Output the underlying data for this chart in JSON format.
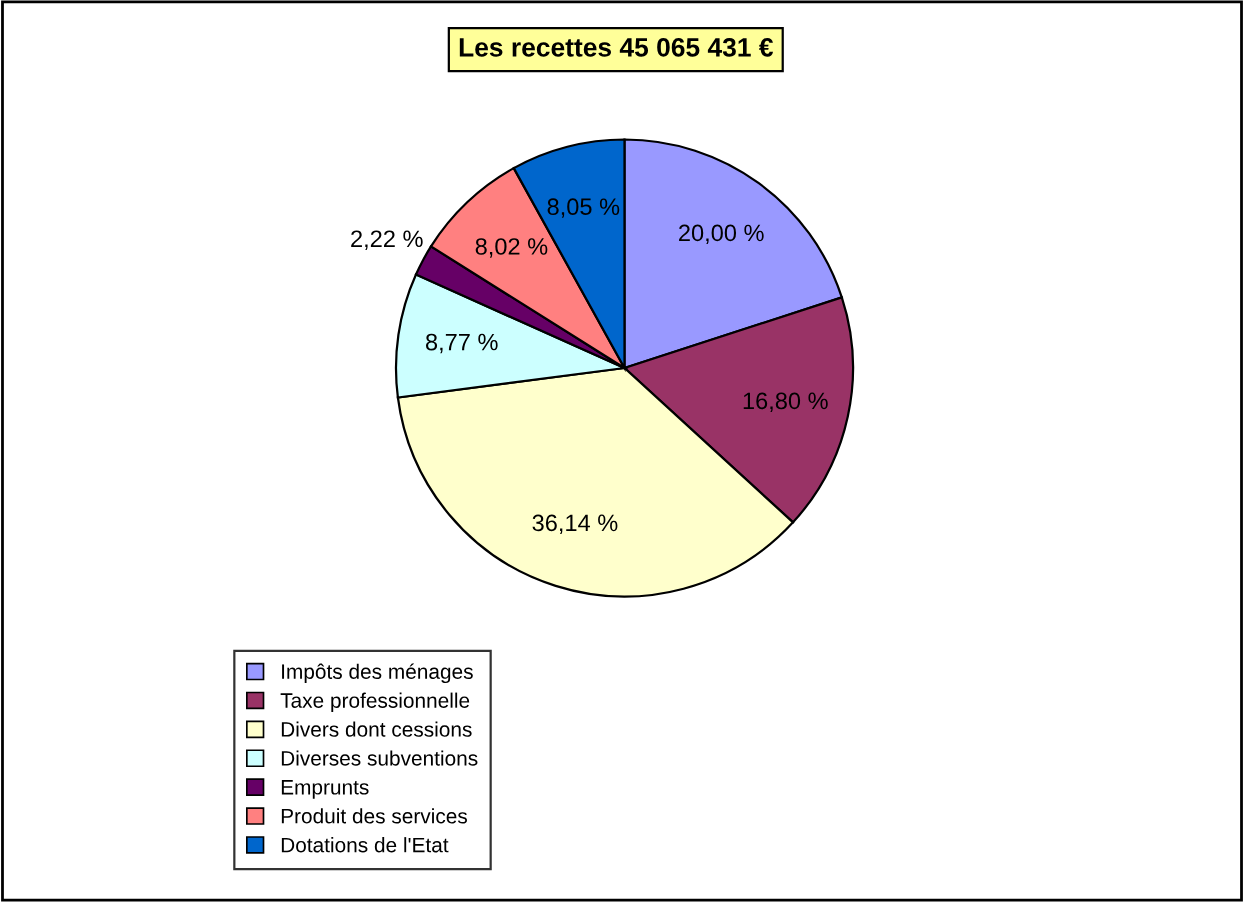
{
  "chart_data": {
    "type": "pie",
    "title": "Les recettes 45 065 431 €",
    "categories": [
      "Impôts des ménages",
      "Taxe professionnelle",
      "Divers dont cessions",
      "Diverses subventions",
      "Emprunts",
      "Produit des services",
      "Dotations de l'Etat"
    ],
    "values": [
      20.0,
      16.8,
      36.14,
      8.77,
      2.22,
      8.02,
      8.05
    ],
    "colors": [
      "#9999ff",
      "#993366",
      "#ffffcc",
      "#ccffff",
      "#660066",
      "#ff8080",
      "#0066cc"
    ],
    "value_labels": [
      "20,00 %",
      "16,80 %",
      "36,14 %",
      "8,77 %",
      "2,22 %",
      "8,02 %",
      "8,05 %"
    ],
    "legend": "bottom left"
  }
}
